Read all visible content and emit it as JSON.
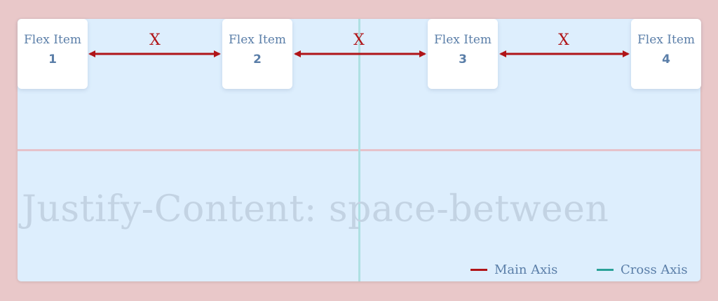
{
  "items": [
    {
      "label": "Flex Item",
      "number": "1"
    },
    {
      "label": "Flex Item",
      "number": "2"
    },
    {
      "label": "Flex Item",
      "number": "3"
    },
    {
      "label": "Flex Item",
      "number": "4"
    }
  ],
  "gap_label": "X",
  "watermark": "Justify-Content: space-between",
  "legend": {
    "main_axis": "Main Axis",
    "cross_axis": "Cross Axis"
  },
  "colors": {
    "background": "#e9c8c9",
    "container": "#ddeefd",
    "main_axis": "#b01418",
    "cross_axis": "#2aa198",
    "item_text": "#5a7ea8"
  }
}
